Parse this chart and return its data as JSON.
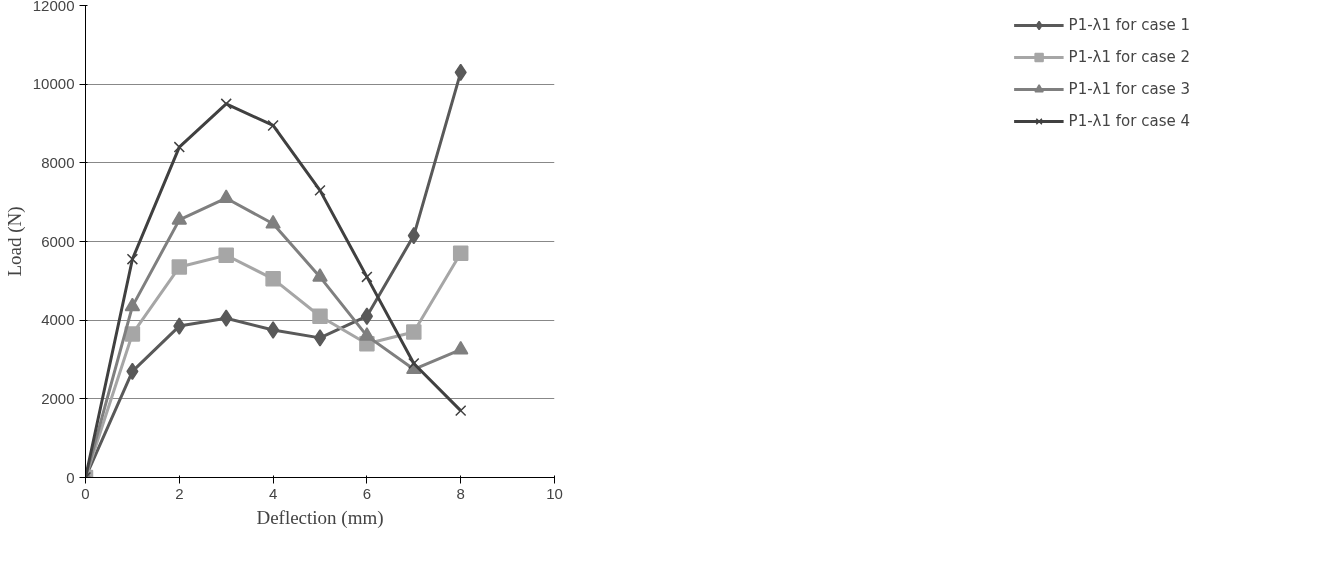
{
  "chart_data": {
    "type": "line",
    "xlabel": "Deflection (mm)",
    "ylabel": "Load (N)",
    "x": [
      0,
      1,
      2,
      3,
      4,
      5,
      6,
      7,
      8
    ],
    "xlim": [
      0,
      10
    ],
    "xticks": [
      0,
      2,
      4,
      6,
      8,
      10
    ],
    "ylim": [
      0,
      12000
    ],
    "yticks": [
      0,
      2000,
      4000,
      6000,
      8000,
      10000,
      12000
    ],
    "grid": "y",
    "legend": "right",
    "series": [
      {
        "name": "P1-λ1 for case 1",
        "color": "#595959",
        "marker": "diamond",
        "values": [
          0,
          2700,
          3850,
          4050,
          3750,
          3550,
          4100,
          6150,
          10300
        ]
      },
      {
        "name": "P1-λ1 for case 2",
        "color": "#a6a6a6",
        "marker": "square",
        "values": [
          0,
          3650,
          5350,
          5650,
          5050,
          4100,
          3400,
          3700,
          5700
        ]
      },
      {
        "name": "P1-λ1 for case 3",
        "color": "#7f7f7f",
        "marker": "triangle",
        "values": [
          0,
          4350,
          6550,
          7100,
          6450,
          5100,
          3600,
          2750,
          3250
        ]
      },
      {
        "name": "P1-λ1 for case 4",
        "color": "#404040",
        "marker": "cross",
        "values": [
          0,
          5550,
          8400,
          9500,
          8950,
          7300,
          5100,
          2900,
          1700
        ]
      }
    ]
  }
}
